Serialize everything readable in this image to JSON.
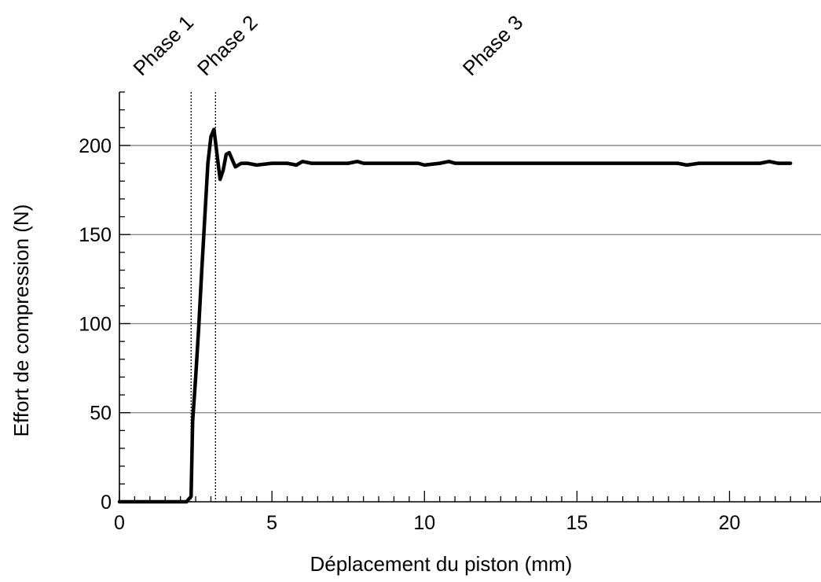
{
  "chart_data": {
    "type": "line",
    "title": "",
    "xlabel": "Déplacement du piston (mm)",
    "ylabel": "Effort de compression (N)",
    "xlim": [
      0,
      23
    ],
    "ylim": [
      0,
      230
    ],
    "x_ticks": [
      0,
      5,
      10,
      15,
      20
    ],
    "y_ticks": [
      0,
      50,
      100,
      150,
      200
    ],
    "x_tick_labels": [
      "0",
      "5",
      "10",
      "15",
      "20"
    ],
    "y_tick_labels": [
      "0",
      "50",
      "100",
      "150",
      "200"
    ],
    "x_minor_step": 0.5,
    "y_minor_step": 10,
    "grid": "horizontal-major",
    "line_color": "#000000",
    "grid_color": "#808080",
    "phase_lines": [
      {
        "x": 2.35,
        "label": "Phase 1",
        "label_x": 1.6
      },
      {
        "x": 3.15,
        "label": "Phase 2",
        "label_x": 3.7
      }
    ],
    "phase_extra_labels": [
      {
        "label": "Phase 3",
        "label_x": 12.4
      }
    ],
    "series": [
      {
        "x": [
          0,
          1,
          2,
          2.2,
          2.3,
          2.35,
          2.4,
          2.5,
          2.6,
          2.7,
          2.8,
          2.9,
          3.0,
          3.1,
          3.2,
          3.3,
          3.4,
          3.5,
          3.6,
          3.7,
          3.8,
          3.9,
          4.0,
          4.2,
          4.5,
          5.0,
          5.5,
          5.8,
          6.0,
          6.3,
          6.6,
          7.0,
          7.5,
          7.8,
          8.0,
          8.5,
          9.0,
          9.5,
          9.8,
          10.0,
          10.5,
          10.8,
          11.0,
          11.5,
          12.0,
          12.5,
          13.0,
          13.5,
          14.0,
          14.5,
          15.0,
          15.5,
          16.0,
          16.5,
          17.0,
          17.5,
          18.0,
          18.3,
          18.6,
          19.0,
          19.5,
          20.0,
          20.5,
          21.0,
          21.3,
          21.6,
          22.0
        ],
        "values": [
          0,
          0,
          0,
          0,
          2,
          3,
          45,
          70,
          98,
          130,
          160,
          190,
          205,
          209,
          195,
          181,
          186,
          195,
          196,
          192,
          188,
          189,
          190,
          190,
          189,
          190,
          190,
          189,
          191,
          190,
          190,
          190,
          190,
          191,
          190,
          190,
          190,
          190,
          190,
          189,
          190,
          191,
          190,
          190,
          190,
          190,
          190,
          190,
          190,
          190,
          190,
          190,
          190,
          190,
          190,
          190,
          190,
          190,
          189,
          190,
          190,
          190,
          190,
          190,
          191,
          190,
          190
        ]
      }
    ]
  }
}
